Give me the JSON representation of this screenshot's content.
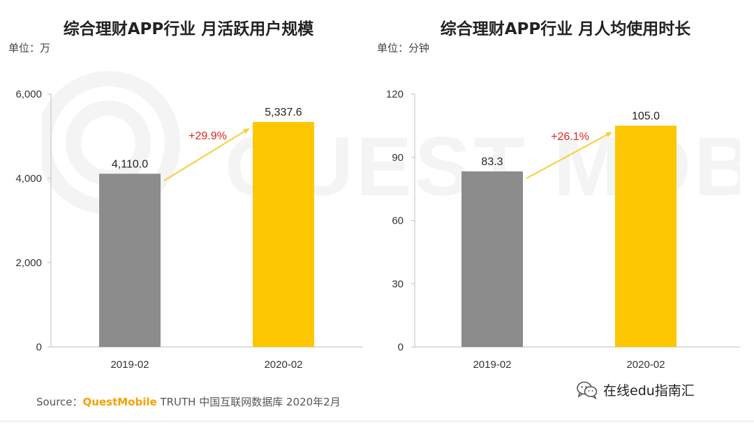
{
  "watermark": {
    "text": "QUEST MOBILE",
    "icon": "questmobile-logo-icon"
  },
  "colors": {
    "bar_2019": "#8c8c8c",
    "bar_2020": "#fcc700",
    "growth": "#e8231e",
    "arrow": "#f6cf3a",
    "axis": "#bfbfbf",
    "brand": "#f5a200"
  },
  "chart_data": [
    {
      "type": "bar",
      "title": "综合理财APP行业 月活跃用户规模",
      "unit_label": "单位：万",
      "categories": [
        "2019-02",
        "2020-02"
      ],
      "values": [
        4110.0,
        5337.6
      ],
      "value_labels": [
        "4,110.0",
        "5,337.6"
      ],
      "ylim": [
        0,
        6000
      ],
      "yticks": [
        0,
        2000,
        4000,
        6000
      ],
      "ytick_labels": [
        "0",
        "2,000",
        "4,000",
        "6,000"
      ],
      "growth_label": "+29.9%",
      "grid": false
    },
    {
      "type": "bar",
      "title": "综合理财APP行业 月人均使用时长",
      "unit_label": "单位：分钟",
      "categories": [
        "2019-02",
        "2020-02"
      ],
      "values": [
        83.3,
        105.0
      ],
      "value_labels": [
        "83.3",
        "105.0"
      ],
      "ylim": [
        0,
        120
      ],
      "yticks": [
        0,
        30,
        60,
        90,
        120
      ],
      "ytick_labels": [
        "0",
        "30",
        "60",
        "90",
        "120"
      ],
      "growth_label": "+26.1%",
      "grid": false
    }
  ],
  "footer": {
    "prefix": "Source：",
    "brand": "QuestMobile",
    "suffix": " TRUTH 中国互联网数据库 2020年2月"
  },
  "wechat": {
    "label": "在线edu指南汇",
    "icon": "wechat-icon"
  }
}
